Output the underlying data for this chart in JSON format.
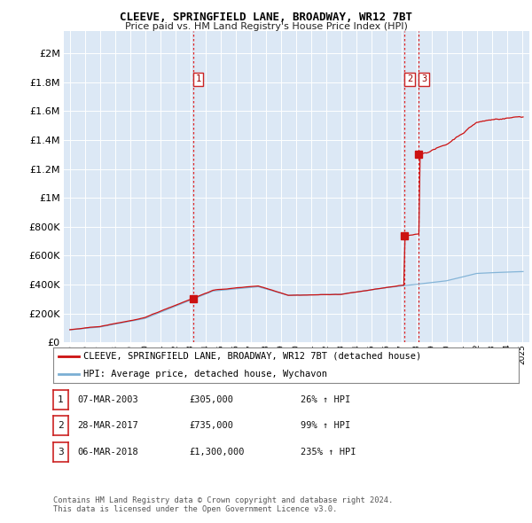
{
  "title": "CLEEVE, SPRINGFIELD LANE, BROADWAY, WR12 7BT",
  "subtitle": "Price paid vs. HM Land Registry's House Price Index (HPI)",
  "ytick_values": [
    0,
    200000,
    400000,
    600000,
    800000,
    1000000,
    1200000,
    1400000,
    1600000,
    1800000,
    2000000
  ],
  "ylim": [
    0,
    2150000
  ],
  "transactions": [
    {
      "date_num": 2003.18,
      "price": 305000,
      "label": "1"
    },
    {
      "date_num": 2017.23,
      "price": 735000,
      "label": "2"
    },
    {
      "date_num": 2018.17,
      "price": 1300000,
      "label": "3"
    }
  ],
  "vline_color": "#dd2222",
  "hpi_line_color": "#7bafd4",
  "price_line_color": "#cc1111",
  "legend_entries": [
    "CLEEVE, SPRINGFIELD LANE, BROADWAY, WR12 7BT (detached house)",
    "HPI: Average price, detached house, Wychavon"
  ],
  "table_rows": [
    {
      "num": "1",
      "date": "07-MAR-2003",
      "price": "£305,000",
      "pct": "26% ↑ HPI"
    },
    {
      "num": "2",
      "date": "28-MAR-2017",
      "price": "£735,000",
      "pct": "99% ↑ HPI"
    },
    {
      "num": "3",
      "date": "06-MAR-2018",
      "price": "£1,300,000",
      "pct": "235% ↑ HPI"
    }
  ],
  "footer": "Contains HM Land Registry data © Crown copyright and database right 2024.\nThis data is licensed under the Open Government Licence v3.0.",
  "plot_bg_color": "#dce8f5"
}
